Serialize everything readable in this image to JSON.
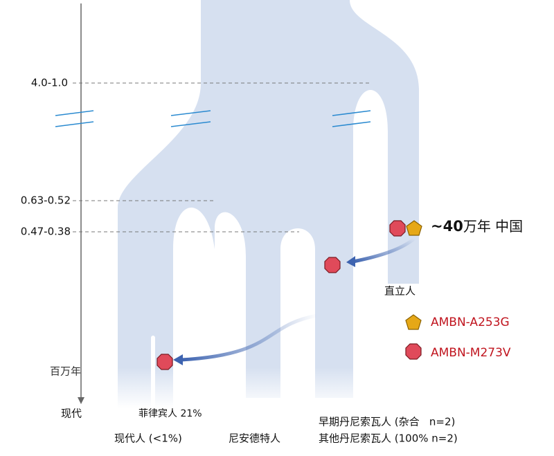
{
  "axis": {
    "ticks": [
      "4.0-1.0",
      "0.63-0.52",
      "0.47-0.38"
    ],
    "unit": "百万年",
    "end": "现代"
  },
  "erectus": {
    "note_number": "~40",
    "note_rest": "万年 中国",
    "label": "直立人"
  },
  "legend": [
    {
      "label": "AMBN-A253G"
    },
    {
      "label": "AMBN-M273V"
    }
  ],
  "branches": {
    "filipino": "菲律宾人 21%",
    "modern": "现代人 (<1%)",
    "neanderthal": "尼安德特人",
    "denisovan_early": "早期丹尼索瓦人 (杂合   n=2)",
    "denisovan_other": "其他丹尼索瓦人 (100% n=2)"
  }
}
